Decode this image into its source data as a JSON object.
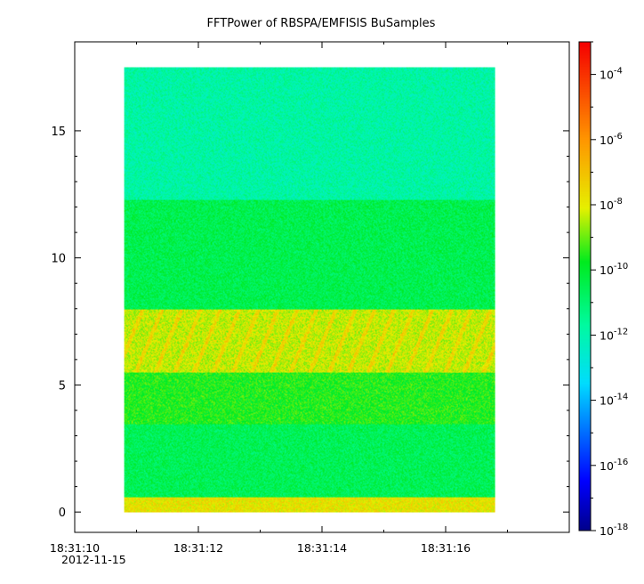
{
  "chart_data": {
    "type": "heatmap",
    "title": "FFTPower of RBSPA/EMFISIS  BuSamples",
    "xlabel": "",
    "ylabel": "",
    "x_date": "2012-11-15",
    "x_tick_labels": [
      "18:31:10",
      "18:31:12",
      "18:31:14",
      "18:31:16"
    ],
    "x_tick_values_s": [
      10,
      12,
      14,
      16
    ],
    "xlim_s": [
      10,
      18
    ],
    "y_tick_labels": [
      "0",
      "5",
      "10",
      "15"
    ],
    "ylim": [
      -0.8,
      18.5
    ],
    "data_extent": {
      "x": [
        10.8,
        16.8
      ],
      "y": [
        0,
        17.5
      ]
    },
    "colorbar": {
      "scale": "log",
      "range": [
        1e-18,
        0.001
      ],
      "tick_exponents": [
        "-4",
        "-6",
        "-8",
        "-10",
        "-12",
        "-14",
        "-16",
        "-18"
      ],
      "tick_base": "10"
    },
    "bands": [
      {
        "y": [
          0,
          0.6
        ],
        "log10_power": -7.8
      },
      {
        "y": [
          0.6,
          3.5
        ],
        "log10_power": -10.6
      },
      {
        "y": [
          3.5,
          5.5
        ],
        "log10_power": -9.6
      },
      {
        "y": [
          5.5,
          8.0
        ],
        "log10_power": -8.3
      },
      {
        "y": [
          8.0,
          12.3
        ],
        "log10_power": -10.5
      },
      {
        "y": [
          12.3,
          17.5
        ],
        "log10_power": -11.8
      }
    ],
    "grid": false,
    "legend": "right"
  }
}
